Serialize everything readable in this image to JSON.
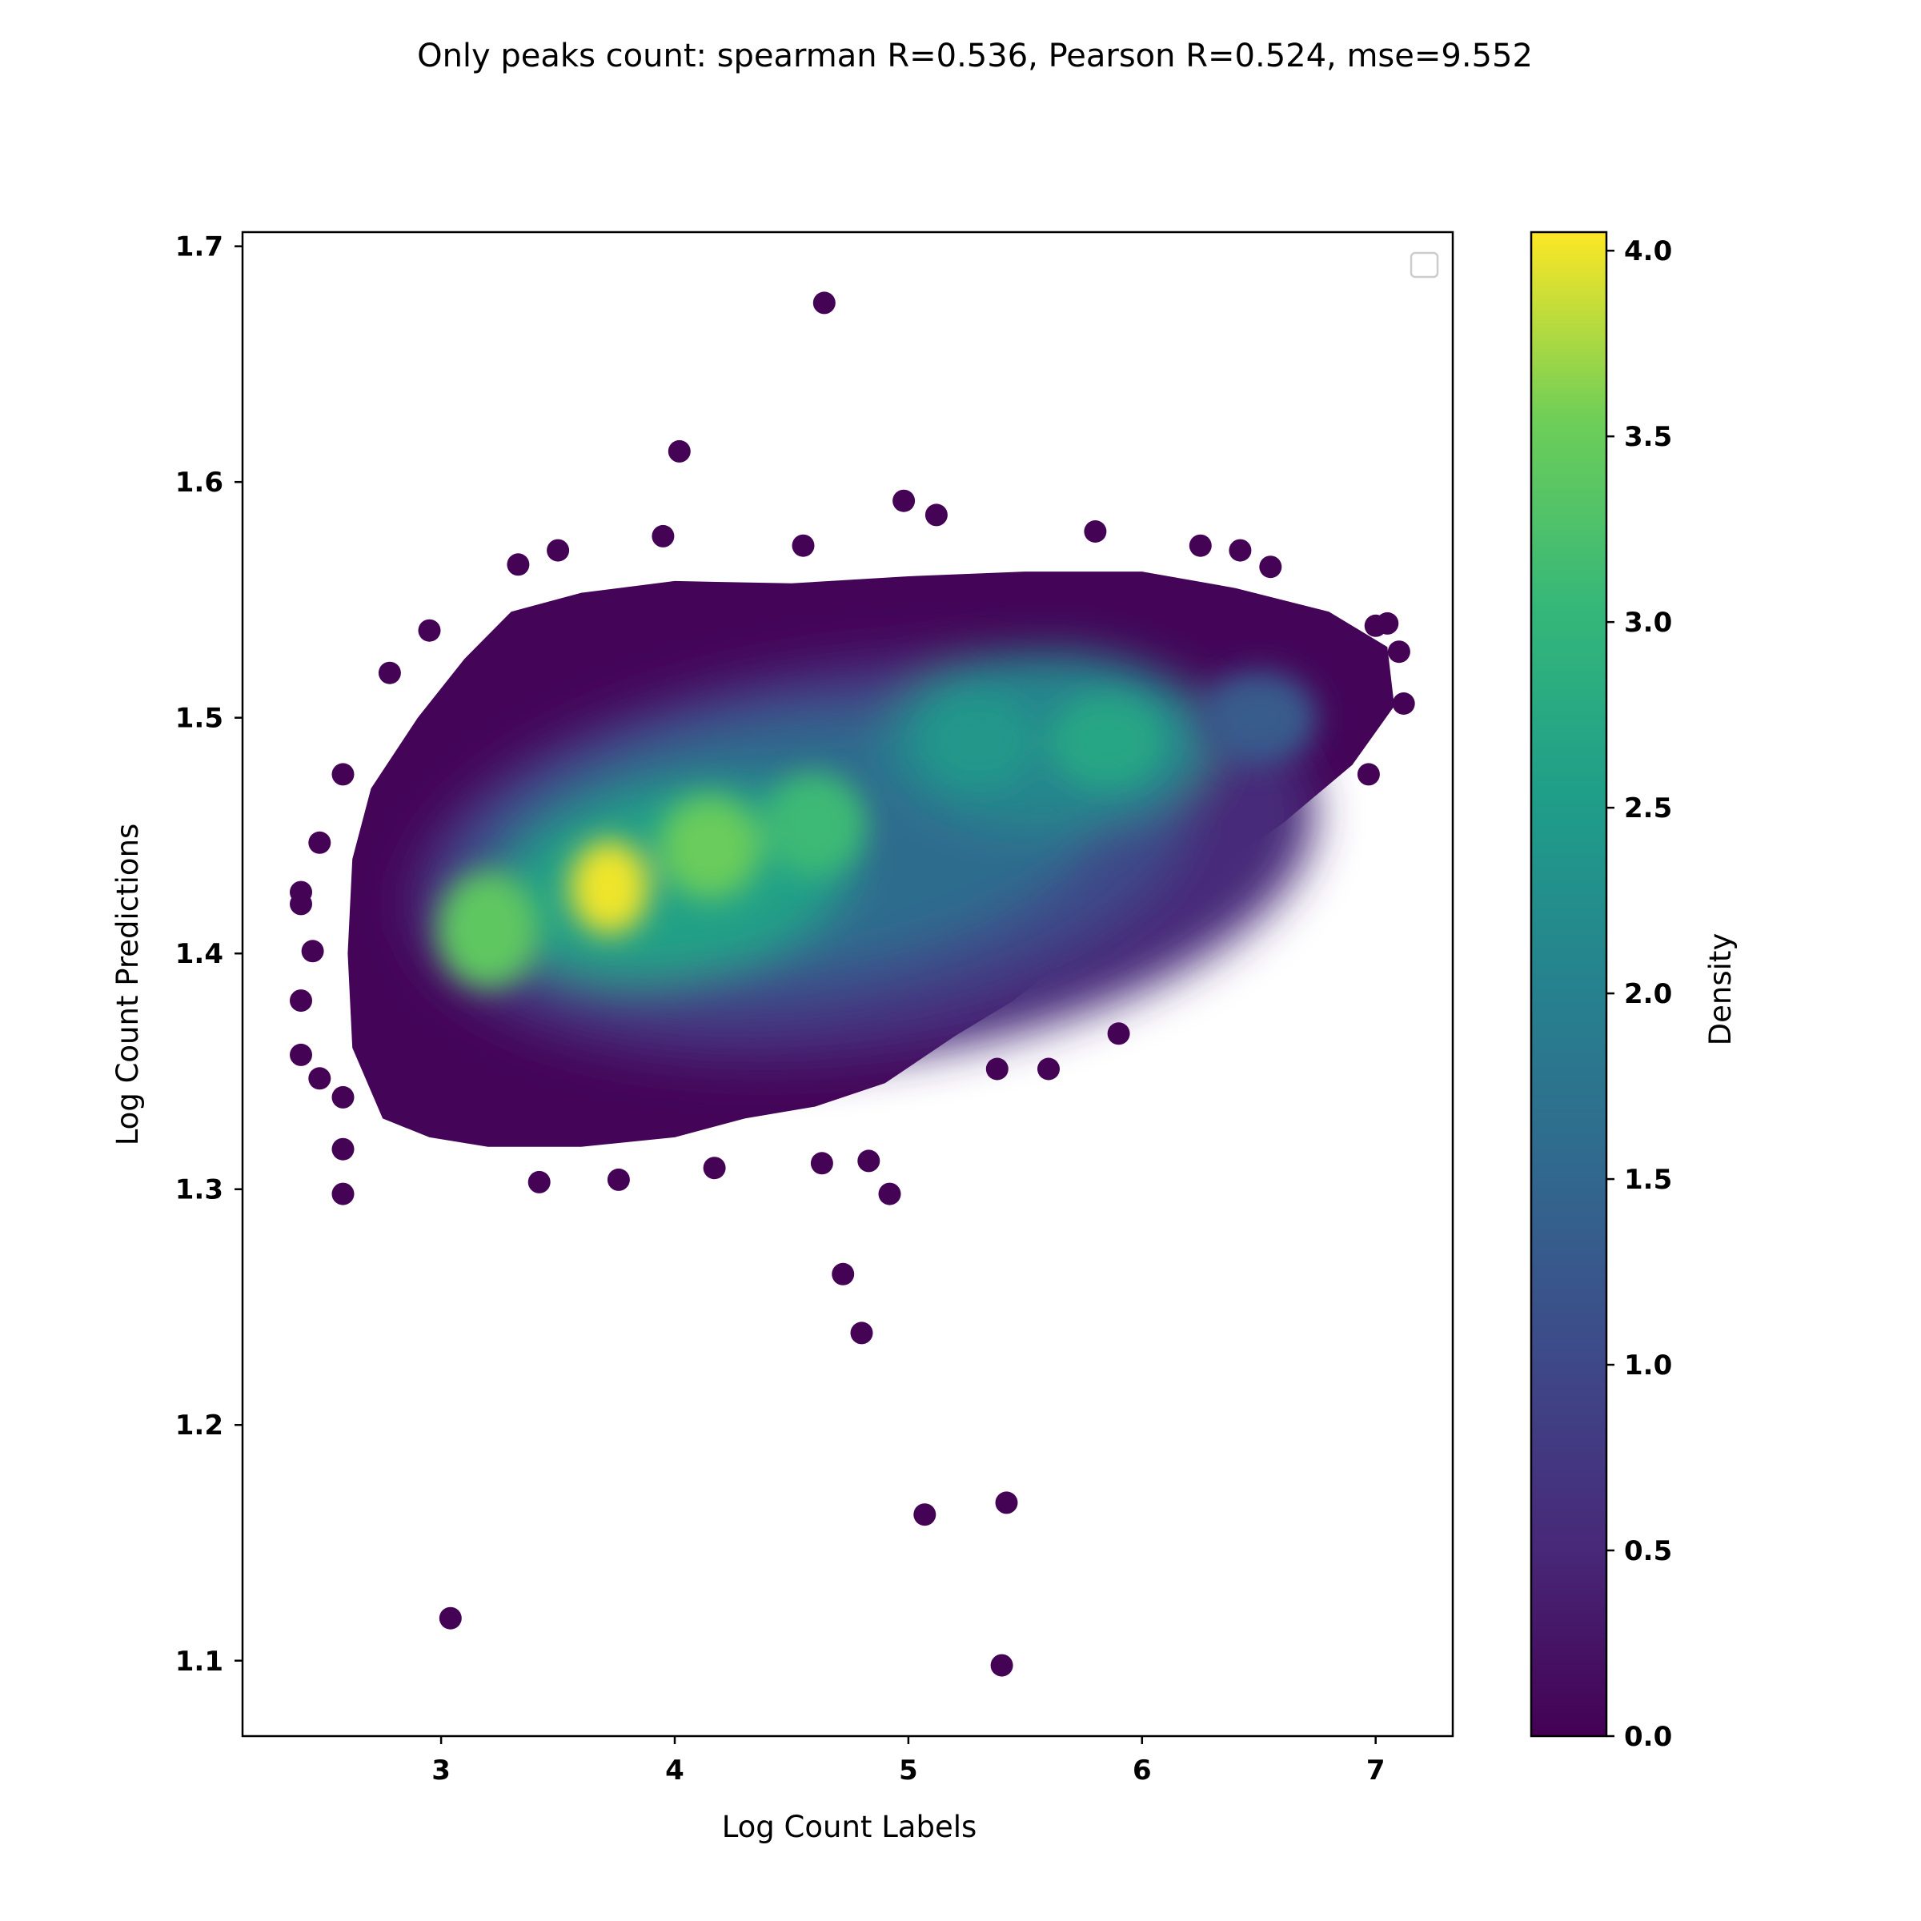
{
  "chart_data": {
    "type": "scatter",
    "title": "Only peaks count: spearman R=0.536, Pearson R=0.524, mse=9.552",
    "xlabel": "Log Count Labels",
    "ylabel": "Log Count Predictions",
    "xlim": [
      2.15,
      7.33
    ],
    "ylim": [
      1.068,
      1.706
    ],
    "x_ticks": [
      "3",
      "4",
      "5",
      "6",
      "7"
    ],
    "y_ticks": [
      "1.1",
      "1.2",
      "1.3",
      "1.4",
      "1.5",
      "1.6",
      "1.7"
    ],
    "grid": false,
    "legend": "empty box, top-right",
    "colormap": "viridis",
    "colorbar": {
      "label": "Density",
      "range": [
        0.0,
        4.05
      ],
      "ticks": [
        "0.0",
        "0.5",
        "1.0",
        "1.5",
        "2.0",
        "2.5",
        "3.0",
        "3.5",
        "4.0"
      ]
    },
    "density_clusters": [
      {
        "x": 3.72,
        "y": 1.428,
        "peak_density": 4.0
      },
      {
        "x": 4.15,
        "y": 1.445,
        "peak_density": 3.5
      },
      {
        "x": 4.6,
        "y": 1.455,
        "peak_density": 3.1
      },
      {
        "x": 3.2,
        "y": 1.41,
        "peak_density": 3.4
      },
      {
        "x": 5.3,
        "y": 1.49,
        "peak_density": 2.4
      },
      {
        "x": 5.85,
        "y": 1.49,
        "peak_density": 2.7
      },
      {
        "x": 6.5,
        "y": 1.5,
        "peak_density": 1.3
      }
    ],
    "outlier_points": [
      {
        "x": 4.64,
        "y": 1.676
      },
      {
        "x": 4.02,
        "y": 1.613
      },
      {
        "x": 4.98,
        "y": 1.592
      },
      {
        "x": 5.12,
        "y": 1.586
      },
      {
        "x": 5.8,
        "y": 1.579
      },
      {
        "x": 3.95,
        "y": 1.577
      },
      {
        "x": 3.5,
        "y": 1.571
      },
      {
        "x": 4.55,
        "y": 1.573
      },
      {
        "x": 6.25,
        "y": 1.573
      },
      {
        "x": 6.42,
        "y": 1.571
      },
      {
        "x": 3.33,
        "y": 1.565
      },
      {
        "x": 6.55,
        "y": 1.564
      },
      {
        "x": 2.78,
        "y": 1.519
      },
      {
        "x": 2.95,
        "y": 1.537
      },
      {
        "x": 2.58,
        "y": 1.476
      },
      {
        "x": 2.48,
        "y": 1.447
      },
      {
        "x": 2.4,
        "y": 1.426
      },
      {
        "x": 2.4,
        "y": 1.421
      },
      {
        "x": 2.45,
        "y": 1.401
      },
      {
        "x": 2.4,
        "y": 1.38
      },
      {
        "x": 2.4,
        "y": 1.357
      },
      {
        "x": 2.48,
        "y": 1.347
      },
      {
        "x": 2.58,
        "y": 1.339
      },
      {
        "x": 2.58,
        "y": 1.317
      },
      {
        "x": 2.58,
        "y": 1.298
      },
      {
        "x": 3.42,
        "y": 1.303
      },
      {
        "x": 3.76,
        "y": 1.304
      },
      {
        "x": 4.17,
        "y": 1.309
      },
      {
        "x": 4.63,
        "y": 1.311
      },
      {
        "x": 4.83,
        "y": 1.312
      },
      {
        "x": 4.92,
        "y": 1.298
      },
      {
        "x": 5.9,
        "y": 1.366
      },
      {
        "x": 5.6,
        "y": 1.351
      },
      {
        "x": 5.38,
        "y": 1.351
      },
      {
        "x": 7.0,
        "y": 1.539
      },
      {
        "x": 7.05,
        "y": 1.54
      },
      {
        "x": 7.1,
        "y": 1.528
      },
      {
        "x": 7.12,
        "y": 1.506
      },
      {
        "x": 6.97,
        "y": 1.476
      },
      {
        "x": 4.72,
        "y": 1.264
      },
      {
        "x": 4.8,
        "y": 1.239
      },
      {
        "x": 5.42,
        "y": 1.167
      },
      {
        "x": 5.07,
        "y": 1.162
      },
      {
        "x": 3.04,
        "y": 1.118
      },
      {
        "x": 5.4,
        "y": 1.098
      }
    ]
  }
}
